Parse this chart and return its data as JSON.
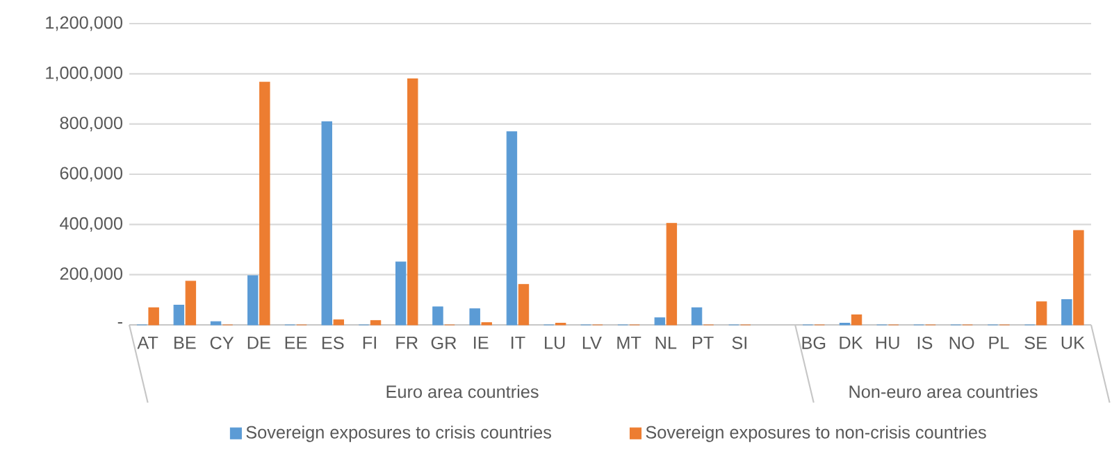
{
  "chart_data": {
    "type": "bar",
    "categories": [
      "AT",
      "BE",
      "CY",
      "DE",
      "EE",
      "ES",
      "FI",
      "FR",
      "GR",
      "IE",
      "IT",
      "LU",
      "LV",
      "MT",
      "NL",
      "PT",
      "SI",
      null,
      "BG",
      "DK",
      "HU",
      "IS",
      "NO",
      "PL",
      "SE",
      "UK"
    ],
    "series": [
      {
        "name": "Sovereign exposures to crisis countries",
        "color": "#5b9bd5",
        "values": [
          0,
          79000,
          13000,
          196000,
          0,
          809000,
          0,
          251000,
          72000,
          64000,
          769000,
          0,
          0,
          0,
          28000,
          68000,
          0,
          null,
          0,
          7000,
          0,
          0,
          0,
          0,
          0,
          101000
        ]
      },
      {
        "name": "Sovereign exposures to non-crisis countries",
        "color": "#ed7d31",
        "values": [
          68000,
          174000,
          0,
          967000,
          0,
          20000,
          17000,
          980000,
          0,
          9000,
          161000,
          7000,
          0,
          0,
          404000,
          0,
          0,
          null,
          0,
          40000,
          0,
          0,
          0,
          0,
          92000,
          376000
        ]
      }
    ],
    "ylim": [
      0,
      1200000
    ],
    "yticks": [
      {
        "value": 0,
        "label": "-"
      },
      {
        "value": 200000,
        "label": "200,000"
      },
      {
        "value": 400000,
        "label": "400,000"
      },
      {
        "value": 600000,
        "label": "600,000"
      },
      {
        "value": 800000,
        "label": "800,000"
      },
      {
        "value": 1000000,
        "label": "1,000,000"
      },
      {
        "value": 1200000,
        "label": "1,200,000"
      }
    ],
    "grid": "y",
    "legend": "bottom",
    "annotations": [
      "Euro area countries",
      "Non-euro area countries"
    ]
  }
}
